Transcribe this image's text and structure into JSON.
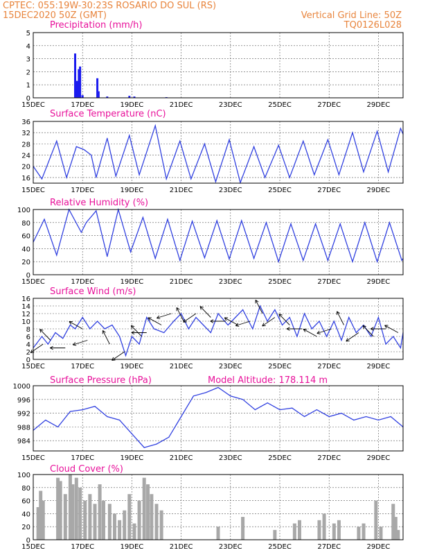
{
  "header": {
    "station_line": "CPTEC:   055:19W-30:23S   ROSARIO DO SUL (RS)",
    "date_line": "15DEC2020 50Z (GMT)",
    "grid_note": "Vertical Grid Line: 50Z",
    "run_code": "TQ0126L028"
  },
  "colors": {
    "header_text": "#e8843c",
    "panel_title": "#e8109a",
    "series_line": "#3040e0",
    "precip_bar": "#1a1aee",
    "cloud_bar": "#a8a8a8",
    "wind_arrow": "#000000"
  },
  "chart_data": [
    {
      "type": "bar",
      "title": "Precipitation (mm/h)",
      "ylim": [
        0,
        5
      ],
      "yticks": [
        0,
        1,
        2,
        3,
        4,
        5
      ],
      "xlabels": [
        "15DEC",
        "17DEC",
        "19DEC",
        "21DEC",
        "23DEC",
        "25DEC",
        "27DEC",
        "29DEC"
      ],
      "x_days": [
        0,
        15.0
      ],
      "bars": [
        [
          1.7,
          3.4
        ],
        [
          1.78,
          1.3
        ],
        [
          1.85,
          2.2
        ],
        [
          1.9,
          2.4
        ],
        [
          2.0,
          0.2
        ],
        [
          2.6,
          1.5
        ],
        [
          2.65,
          0.5
        ],
        [
          3.0,
          0.1
        ],
        [
          3.9,
          0.15
        ],
        [
          4.1,
          0.1
        ],
        [
          5.4,
          0.05
        ]
      ]
    },
    {
      "type": "line",
      "title": "Surface Temperature (nC)",
      "ylim": [
        14,
        36
      ],
      "yticks": [
        16,
        20,
        24,
        28,
        32,
        36
      ],
      "xlabels": [
        "15DEC",
        "17DEC",
        "19DEC",
        "21DEC",
        "23DEC",
        "25DEC",
        "27DEC",
        "29DEC"
      ],
      "x_days": [
        0,
        15.0
      ],
      "x": [
        0.0,
        0.35,
        0.95,
        1.35,
        1.75,
        2.05,
        2.35,
        2.55,
        3.0,
        3.35,
        3.9,
        4.3,
        4.95,
        5.4,
        5.95,
        6.4,
        6.95,
        7.4,
        7.95,
        8.4,
        8.95,
        9.4,
        9.95,
        10.4,
        10.95,
        11.4,
        11.95,
        12.4,
        12.95,
        13.4,
        13.95,
        14.4,
        14.9,
        15.0
      ],
      "y": [
        20,
        15.5,
        29,
        16,
        27,
        26,
        24,
        16,
        30,
        16.5,
        31,
        17,
        34.5,
        15.5,
        29,
        15.5,
        28,
        14.5,
        29.5,
        14.2,
        27,
        16,
        27.5,
        16,
        29,
        17,
        29.5,
        17,
        32,
        18,
        32.5,
        18,
        33.5,
        31.5
      ]
    },
    {
      "type": "line",
      "title": "Relative Humidity (%)",
      "ylim": [
        0,
        100
      ],
      "yticks": [
        0,
        20,
        40,
        60,
        80,
        100
      ],
      "xlabels": [
        "15DEC",
        "17DEC",
        "19DEC",
        "21DEC",
        "23DEC",
        "25DEC",
        "27DEC",
        "29DEC"
      ],
      "x_days": [
        0,
        15.0
      ],
      "x": [
        0.0,
        0.45,
        0.95,
        1.45,
        1.95,
        2.15,
        2.55,
        3.0,
        3.45,
        3.95,
        4.45,
        4.95,
        5.45,
        5.95,
        6.45,
        6.95,
        7.45,
        7.95,
        8.45,
        8.95,
        9.45,
        9.95,
        10.45,
        10.95,
        11.45,
        11.95,
        12.45,
        12.95,
        13.45,
        13.95,
        14.45,
        14.95,
        15.0
      ],
      "y": [
        50,
        85,
        30,
        100,
        65,
        80,
        98,
        28,
        100,
        35,
        88,
        25,
        85,
        22,
        82,
        26,
        83,
        24,
        83,
        25,
        80,
        20,
        78,
        22,
        78,
        22,
        78,
        20,
        80,
        20,
        80,
        22,
        25
      ]
    },
    {
      "type": "line",
      "title": "Surface Wind (m/s)",
      "ylim": [
        0,
        16
      ],
      "yticks": [
        0,
        2,
        4,
        6,
        8,
        10,
        12,
        14,
        16
      ],
      "xlabels": [
        "15DEC",
        "17DEC",
        "19DEC",
        "21DEC",
        "23DEC",
        "25DEC",
        "27DEC",
        "29DEC"
      ],
      "x_days": [
        0,
        15.0
      ],
      "x": [
        0.0,
        0.35,
        0.6,
        0.9,
        1.2,
        1.5,
        1.7,
        2.0,
        2.3,
        2.6,
        2.9,
        3.2,
        3.5,
        3.75,
        4.0,
        4.3,
        4.6,
        4.9,
        5.3,
        5.7,
        6.0,
        6.3,
        6.6,
        6.9,
        7.2,
        7.5,
        7.9,
        8.2,
        8.5,
        8.9,
        9.2,
        9.5,
        9.8,
        10.1,
        10.4,
        10.7,
        11.0,
        11.3,
        11.6,
        11.9,
        12.2,
        12.5,
        12.8,
        13.1,
        13.4,
        13.7,
        14.0,
        14.3,
        14.6,
        14.9,
        15.0
      ],
      "y": [
        3,
        6,
        4,
        7,
        5.5,
        9,
        8,
        11,
        8,
        10,
        8,
        9,
        6,
        1,
        6,
        4,
        11,
        8,
        7,
        10,
        12,
        8,
        11,
        9,
        7,
        12,
        9,
        11,
        13,
        8,
        14,
        10,
        13,
        9,
        11,
        6,
        12,
        8,
        10,
        6,
        10,
        5,
        11,
        7,
        9,
        6,
        11,
        4,
        6,
        3,
        7
      ]
    },
    {
      "type": "line",
      "title": "Surface Pressure (hPa)",
      "annotation": "Model Altitude: 178.114 m",
      "ylim": [
        981,
        1000
      ],
      "yticks": [
        984,
        988,
        992,
        996,
        1000
      ],
      "xlabels": [
        "15DEC",
        "17DEC",
        "19DEC",
        "21DEC",
        "23DEC",
        "25DEC",
        "27DEC",
        "29DEC"
      ],
      "x_days": [
        0,
        15.0
      ],
      "x": [
        0.0,
        0.5,
        1.0,
        1.5,
        2.0,
        2.5,
        3.0,
        3.5,
        4.0,
        4.5,
        5.0,
        5.5,
        6.0,
        6.5,
        7.0,
        7.5,
        8.0,
        8.5,
        9.0,
        9.5,
        10.0,
        10.5,
        11.0,
        11.5,
        12.0,
        12.5,
        13.0,
        13.5,
        14.0,
        14.5,
        15.0
      ],
      "y": [
        987,
        990,
        988,
        992.5,
        993,
        994,
        991,
        990,
        986,
        982,
        983,
        985,
        991,
        997,
        998,
        999.5,
        997,
        996,
        993,
        995,
        993,
        993.5,
        991,
        993,
        991,
        992,
        990,
        991,
        990,
        991,
        988
      ]
    },
    {
      "type": "bar",
      "title": "Cloud Cover (%)",
      "ylim": [
        0,
        100
      ],
      "yticks": [
        0,
        20,
        40,
        60,
        80,
        100
      ],
      "xlabels": [
        "15DEC",
        "17DEC",
        "19DEC",
        "21DEC",
        "23DEC",
        "25DEC",
        "27DEC",
        "29DEC"
      ],
      "x_days": [
        0,
        15.0
      ],
      "bars": [
        [
          0.2,
          50
        ],
        [
          0.3,
          75
        ],
        [
          0.4,
          60
        ],
        [
          1.0,
          95
        ],
        [
          1.1,
          90
        ],
        [
          1.3,
          70
        ],
        [
          1.5,
          100
        ],
        [
          1.6,
          85
        ],
        [
          1.75,
          95
        ],
        [
          1.9,
          80
        ],
        [
          2.1,
          60
        ],
        [
          2.3,
          70
        ],
        [
          2.5,
          55
        ],
        [
          2.7,
          85
        ],
        [
          2.85,
          60
        ],
        [
          3.1,
          55
        ],
        [
          3.3,
          40
        ],
        [
          3.5,
          30
        ],
        [
          3.7,
          45
        ],
        [
          3.9,
          70
        ],
        [
          4.1,
          25
        ],
        [
          4.3,
          60
        ],
        [
          4.5,
          95
        ],
        [
          4.65,
          85
        ],
        [
          4.8,
          70
        ],
        [
          5.0,
          55
        ],
        [
          5.2,
          45
        ],
        [
          7.5,
          20
        ],
        [
          8.5,
          35
        ],
        [
          9.8,
          15
        ],
        [
          10.6,
          25
        ],
        [
          10.8,
          30
        ],
        [
          11.6,
          30
        ],
        [
          11.8,
          40
        ],
        [
          12.2,
          25
        ],
        [
          12.4,
          30
        ],
        [
          13.2,
          20
        ],
        [
          13.4,
          25
        ],
        [
          13.9,
          60
        ],
        [
          14.1,
          20
        ],
        [
          14.6,
          55
        ],
        [
          14.7,
          35
        ],
        [
          14.8,
          15
        ]
      ]
    },
    {
      "type": "vector",
      "title": "Surface Wind Arrows",
      "barbs": [
        [
          0.4,
          4
        ],
        [
          0.7,
          5
        ],
        [
          1.3,
          3
        ],
        [
          2.0,
          8
        ],
        [
          2.2,
          5
        ],
        [
          3.1,
          4
        ],
        [
          3.7,
          2
        ],
        [
          4.4,
          6
        ],
        [
          4.6,
          7
        ],
        [
          5.2,
          9
        ],
        [
          5.6,
          12
        ],
        [
          6.1,
          10
        ],
        [
          6.6,
          12
        ],
        [
          7.2,
          11
        ],
        [
          7.8,
          10
        ],
        [
          8.3,
          9
        ],
        [
          8.8,
          10
        ],
        [
          9.3,
          12
        ],
        [
          9.8,
          11
        ],
        [
          10.4,
          9
        ],
        [
          10.9,
          8
        ],
        [
          11.5,
          6
        ],
        [
          12.1,
          8
        ],
        [
          12.6,
          9
        ],
        [
          13.2,
          7
        ],
        [
          13.8,
          6
        ],
        [
          14.3,
          8
        ],
        [
          14.8,
          7
        ]
      ]
    }
  ]
}
